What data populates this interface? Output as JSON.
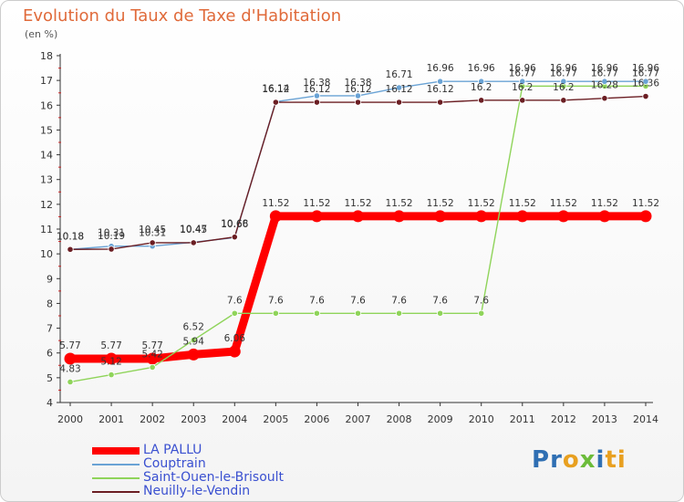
{
  "chart_data": {
    "type": "line",
    "title": "Evolution du Taux de Taxe d'Habitation",
    "subtitle": "(en %)",
    "x": [
      "2000",
      "2001",
      "2002",
      "2003",
      "2004",
      "2005",
      "2006",
      "2007",
      "2008",
      "2009",
      "2010",
      "2011",
      "2012",
      "2013",
      "2014"
    ],
    "ylim": [
      4,
      18
    ],
    "yticks": [
      4,
      5,
      6,
      7,
      8,
      9,
      10,
      11,
      12,
      13,
      14,
      15,
      16,
      17,
      18
    ],
    "grid": false,
    "legend_position": "bottom-left",
    "series": [
      {
        "name": "LA PALLU",
        "color": "#ff0000",
        "values": [
          5.77,
          5.77,
          5.77,
          5.94,
          6.06,
          11.52,
          11.52,
          11.52,
          11.52,
          11.52,
          11.52,
          11.52,
          11.52,
          11.52,
          11.52
        ],
        "labels": [
          "5.77",
          "5.77",
          "5.77",
          "5.94",
          "6.06",
          "11.52",
          "11.52",
          "11.52",
          "11.52",
          "11.52",
          "11.52",
          "11.52",
          "11.52",
          "11.52",
          "11.52"
        ]
      },
      {
        "name": "Couptrain",
        "color": "#6aa3d5",
        "values": [
          10.18,
          10.31,
          10.31,
          10.47,
          10.66,
          16.14,
          16.38,
          16.38,
          16.71,
          16.96,
          16.96,
          16.96,
          16.96,
          16.96,
          16.96
        ],
        "labels": [
          "10.18",
          "10.31",
          "10.31",
          "10.47",
          "10.66",
          "16.14",
          "16.38",
          "16.38",
          "16.71",
          "16.96",
          "16.96",
          "16.96",
          "16.96",
          "16.96",
          "16.96"
        ]
      },
      {
        "name": "Saint-Ouen-le-Brisoult",
        "color": "#8fd45a",
        "values": [
          4.83,
          5.12,
          5.42,
          6.52,
          7.6,
          7.6,
          7.6,
          7.6,
          7.6,
          7.6,
          7.6,
          16.77,
          16.77,
          16.77,
          16.77
        ],
        "labels": [
          "4.83",
          "5.12",
          "5.42",
          "6.52",
          "7.6",
          "7.6",
          "7.6",
          "7.6",
          "7.6",
          "7.6",
          "7.6",
          "16.77",
          "16.77",
          "16.77",
          "16.77"
        ]
      },
      {
        "name": "Neuilly-le-Vendin",
        "color": "#6b1e23",
        "values": [
          10.18,
          10.19,
          10.45,
          10.45,
          10.68,
          16.12,
          16.12,
          16.12,
          16.12,
          16.12,
          16.2,
          16.2,
          16.2,
          16.28,
          16.36
        ],
        "labels": [
          "10.18",
          "10.19",
          "10.45",
          "10.45",
          "10.68",
          "16.12",
          "16.12",
          "16.12",
          "16.12",
          "16.12",
          "16.2",
          "16.2",
          "16.2",
          "16.28",
          "16.36"
        ]
      }
    ]
  },
  "brand": {
    "logo_text": "Proxiti"
  }
}
